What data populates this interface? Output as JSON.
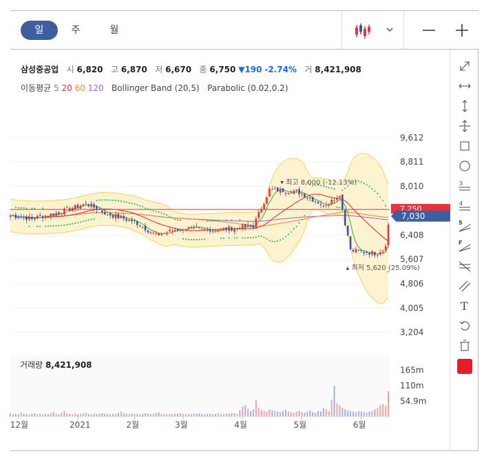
{
  "toolbar": {
    "periods": [
      "일",
      "주",
      "월"
    ],
    "active_period": "일",
    "chart_type_icon": "candlestick-icon",
    "dropdown_icon": "chevron-down-icon",
    "zoom_out_icon": "minus-icon",
    "zoom_in_icon": "plus-icon"
  },
  "legend": {
    "name": "삼성중공업",
    "open_label": "시",
    "open": "6,820",
    "high_label": "고",
    "high": "6,870",
    "low_label": "저",
    "low": "6,670",
    "close_label": "종",
    "close": "6,750",
    "change_arrow": "▼",
    "change": "190",
    "change_pct": "-2.74%",
    "volume_label": "거",
    "volume": "8,421,908"
  },
  "indicators": {
    "ma_label": "이동평균",
    "ma_periods": [
      "5",
      "20",
      "60",
      "120"
    ],
    "bollinger": "Bollinger Band (20,5)",
    "parabolic": "Parabolic (0.02,0.2)"
  },
  "colors": {
    "up": "#e8323c",
    "down": "#3a55a8",
    "ma5": "#4caf50",
    "ma20": "#e8323c",
    "ma60": "#f08c3a",
    "ma120": "#9b6bd6",
    "bollinger_fill": "#fdf3cf",
    "bollinger_line": "#f6d36a",
    "parabolic": "#2fbf71",
    "accent": "#3f5ea0",
    "swatch": "#e61e2b"
  },
  "tools": [
    "expand-icon",
    "horizontal-resize-icon",
    "vertical-resize-icon",
    "move-icon",
    "rectangle-icon",
    "circle-icon",
    "fibonacci-retracement-icon",
    "fibonacci-fan-icon",
    "speed-resistance-icon",
    "fan-icon",
    "gann-icon",
    "parallel-lines-icon",
    "text-icon",
    "undo-icon",
    "trash-icon",
    "color-swatch"
  ],
  "chart_data": {
    "type": "candlestick",
    "y_ticks": [
      "9,612",
      "8,811",
      "8,010",
      "7,209",
      "6,408",
      "5,607",
      "4,806",
      "4,005",
      "3,204"
    ],
    "ylim": [
      2700,
      10400
    ],
    "x_labels": [
      "12월",
      "2021",
      "2월",
      "3월",
      "4월",
      "5월",
      "6월"
    ],
    "current_price_label": "7,030",
    "current_price": 7030,
    "ref_price_label": "7,250",
    "ref_price": 7250,
    "high_annotation": "최고 8,000 (-12.13%)",
    "low_annotation": "최저 5,620 (25.09%)",
    "high_value": 8000,
    "low_value": 5620,
    "volume_title": "거래량",
    "volume_value": "8,421,908",
    "volume_ticks": [
      "165m",
      "110m",
      "54.9m"
    ],
    "volume_ticks_values": [
      165,
      110,
      54.9
    ],
    "volume_max": 220,
    "segments": [
      {
        "from": 0,
        "to": 8,
        "start": 7050,
        "end": 6950
      },
      {
        "from": 8,
        "to": 18,
        "start": 6950,
        "end": 7150
      },
      {
        "from": 18,
        "to": 28,
        "start": 7150,
        "end": 7450
      },
      {
        "from": 28,
        "to": 36,
        "start": 7450,
        "end": 7100
      },
      {
        "from": 36,
        "to": 46,
        "start": 7100,
        "end": 6850
      },
      {
        "from": 46,
        "to": 54,
        "start": 6850,
        "end": 6400
      },
      {
        "from": 54,
        "to": 64,
        "start": 6400,
        "end": 6650
      },
      {
        "from": 64,
        "to": 74,
        "start": 6650,
        "end": 6550
      },
      {
        "from": 74,
        "to": 84,
        "start": 6550,
        "end": 6650
      },
      {
        "from": 84,
        "to": 90,
        "start": 6650,
        "end": 6700
      },
      {
        "from": 90,
        "to": 96,
        "start": 6700,
        "end": 7900
      },
      {
        "from": 96,
        "to": 106,
        "start": 7900,
        "end": 7850
      },
      {
        "from": 106,
        "to": 116,
        "start": 7850,
        "end": 7400
      },
      {
        "from": 116,
        "to": 122,
        "start": 7400,
        "end": 7700
      },
      {
        "from": 122,
        "to": 126,
        "start": 7700,
        "end": 5900
      },
      {
        "from": 126,
        "to": 136,
        "start": 5900,
        "end": 5800
      },
      {
        "from": 136,
        "to": 140,
        "start": 5800,
        "end": 6100
      },
      {
        "from": 140,
        "to": 143,
        "start": 6100,
        "end": 6750
      }
    ],
    "volumes": [
      12,
      8,
      10,
      9,
      14,
      11,
      9,
      8,
      10,
      12,
      9,
      11,
      8,
      10,
      9,
      12,
      16,
      10,
      9,
      14,
      20,
      12,
      10,
      9,
      11,
      8,
      10,
      12,
      14,
      9,
      8,
      10,
      9,
      11,
      12,
      10,
      9,
      8,
      10,
      9,
      14,
      18,
      12,
      10,
      9,
      11,
      10,
      9,
      8,
      10,
      12,
      11,
      9,
      10,
      13,
      15,
      10,
      9,
      8,
      10,
      9,
      11,
      10,
      12,
      9,
      8,
      10,
      9,
      11,
      10,
      12,
      9,
      8,
      10,
      11,
      9,
      10,
      12,
      9,
      8,
      10,
      11,
      12,
      13,
      10,
      22,
      35,
      40,
      28,
      20,
      26,
      58,
      30,
      24,
      20,
      18,
      26,
      22,
      20,
      18,
      16,
      20,
      24,
      18,
      16,
      14,
      18,
      20,
      16,
      14,
      18,
      22,
      16,
      14,
      20,
      18,
      30,
      26,
      20,
      60,
      110,
      48,
      40,
      30,
      26,
      22,
      20,
      18,
      16,
      20,
      18,
      16,
      14,
      18,
      20,
      26,
      30,
      40,
      45,
      38,
      90
    ]
  }
}
